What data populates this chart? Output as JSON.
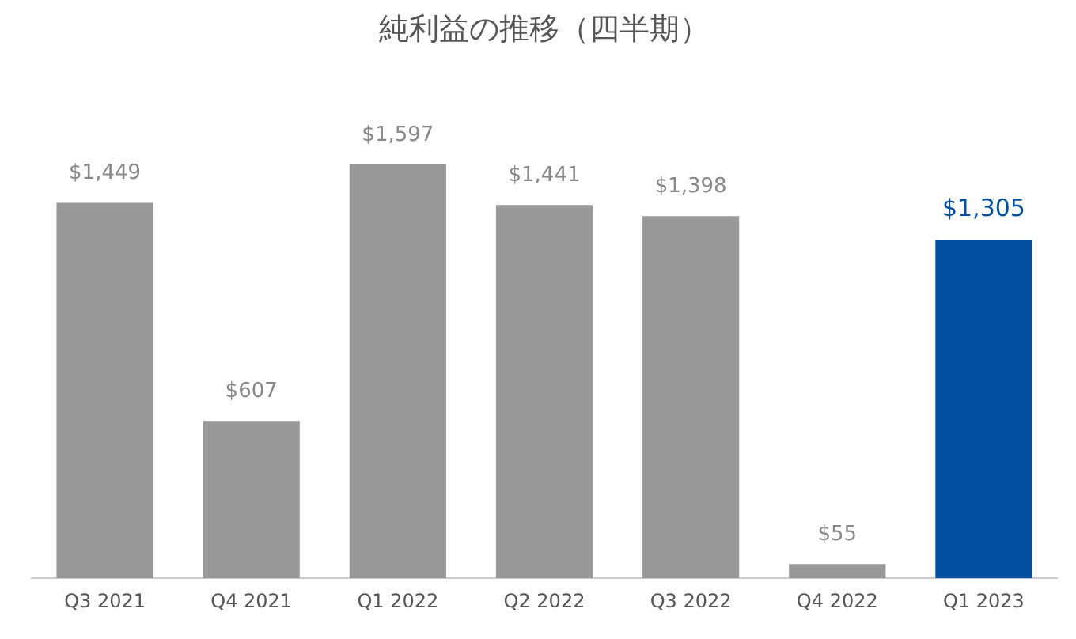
{
  "chart_data": {
    "type": "bar",
    "title": "純利益の推移（四半期）",
    "categories": [
      "Q3 2021",
      "Q4 2021",
      "Q1 2022",
      "Q2 2022",
      "Q3 2022",
      "Q4 2022",
      "Q1 2023"
    ],
    "values": [
      1449,
      607,
      1597,
      1441,
      1398,
      55,
      1305
    ],
    "value_labels": [
      "$1,449",
      "$607",
      "$1,597",
      "$1,441",
      "$1,398",
      "$55",
      "$1,305"
    ],
    "colors": [
      "#999999",
      "#999999",
      "#999999",
      "#999999",
      "#999999",
      "#999999",
      "#0050a0"
    ],
    "grid": false,
    "legend": false
  }
}
